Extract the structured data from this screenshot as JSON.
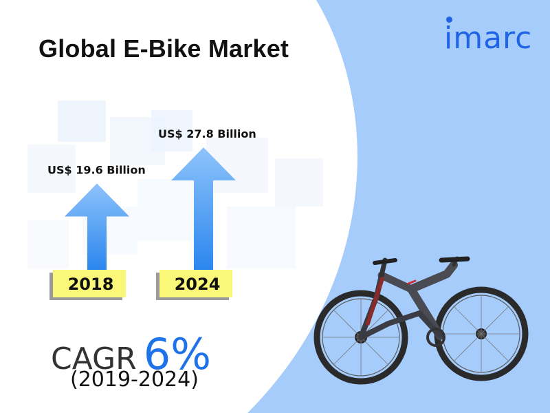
{
  "title": "Global E-Bike Market",
  "logo": "imarc",
  "chart_data": {
    "type": "bar",
    "categories": [
      "2018",
      "2024"
    ],
    "values": [
      19.6,
      27.8
    ],
    "value_labels": [
      "US$ 19.6 Billion",
      "US$ 27.8 Billion"
    ],
    "title": "Global E-Bike Market",
    "xlabel": "",
    "ylabel": "",
    "ylim": [
      0,
      30
    ],
    "grid": false,
    "legend": "none"
  },
  "cagr": {
    "label": "CAGR",
    "value": "6%",
    "period": "(2019-2024)"
  },
  "colors": {
    "arrow_light": "#8ec3fb",
    "arrow_dark": "#2b86ee",
    "year_box": "#fbf779",
    "background_right": "#a6ccfb",
    "logo": "#1f63e6",
    "cagr_value": "#1e73e8"
  },
  "image": "mountain-e-bike"
}
